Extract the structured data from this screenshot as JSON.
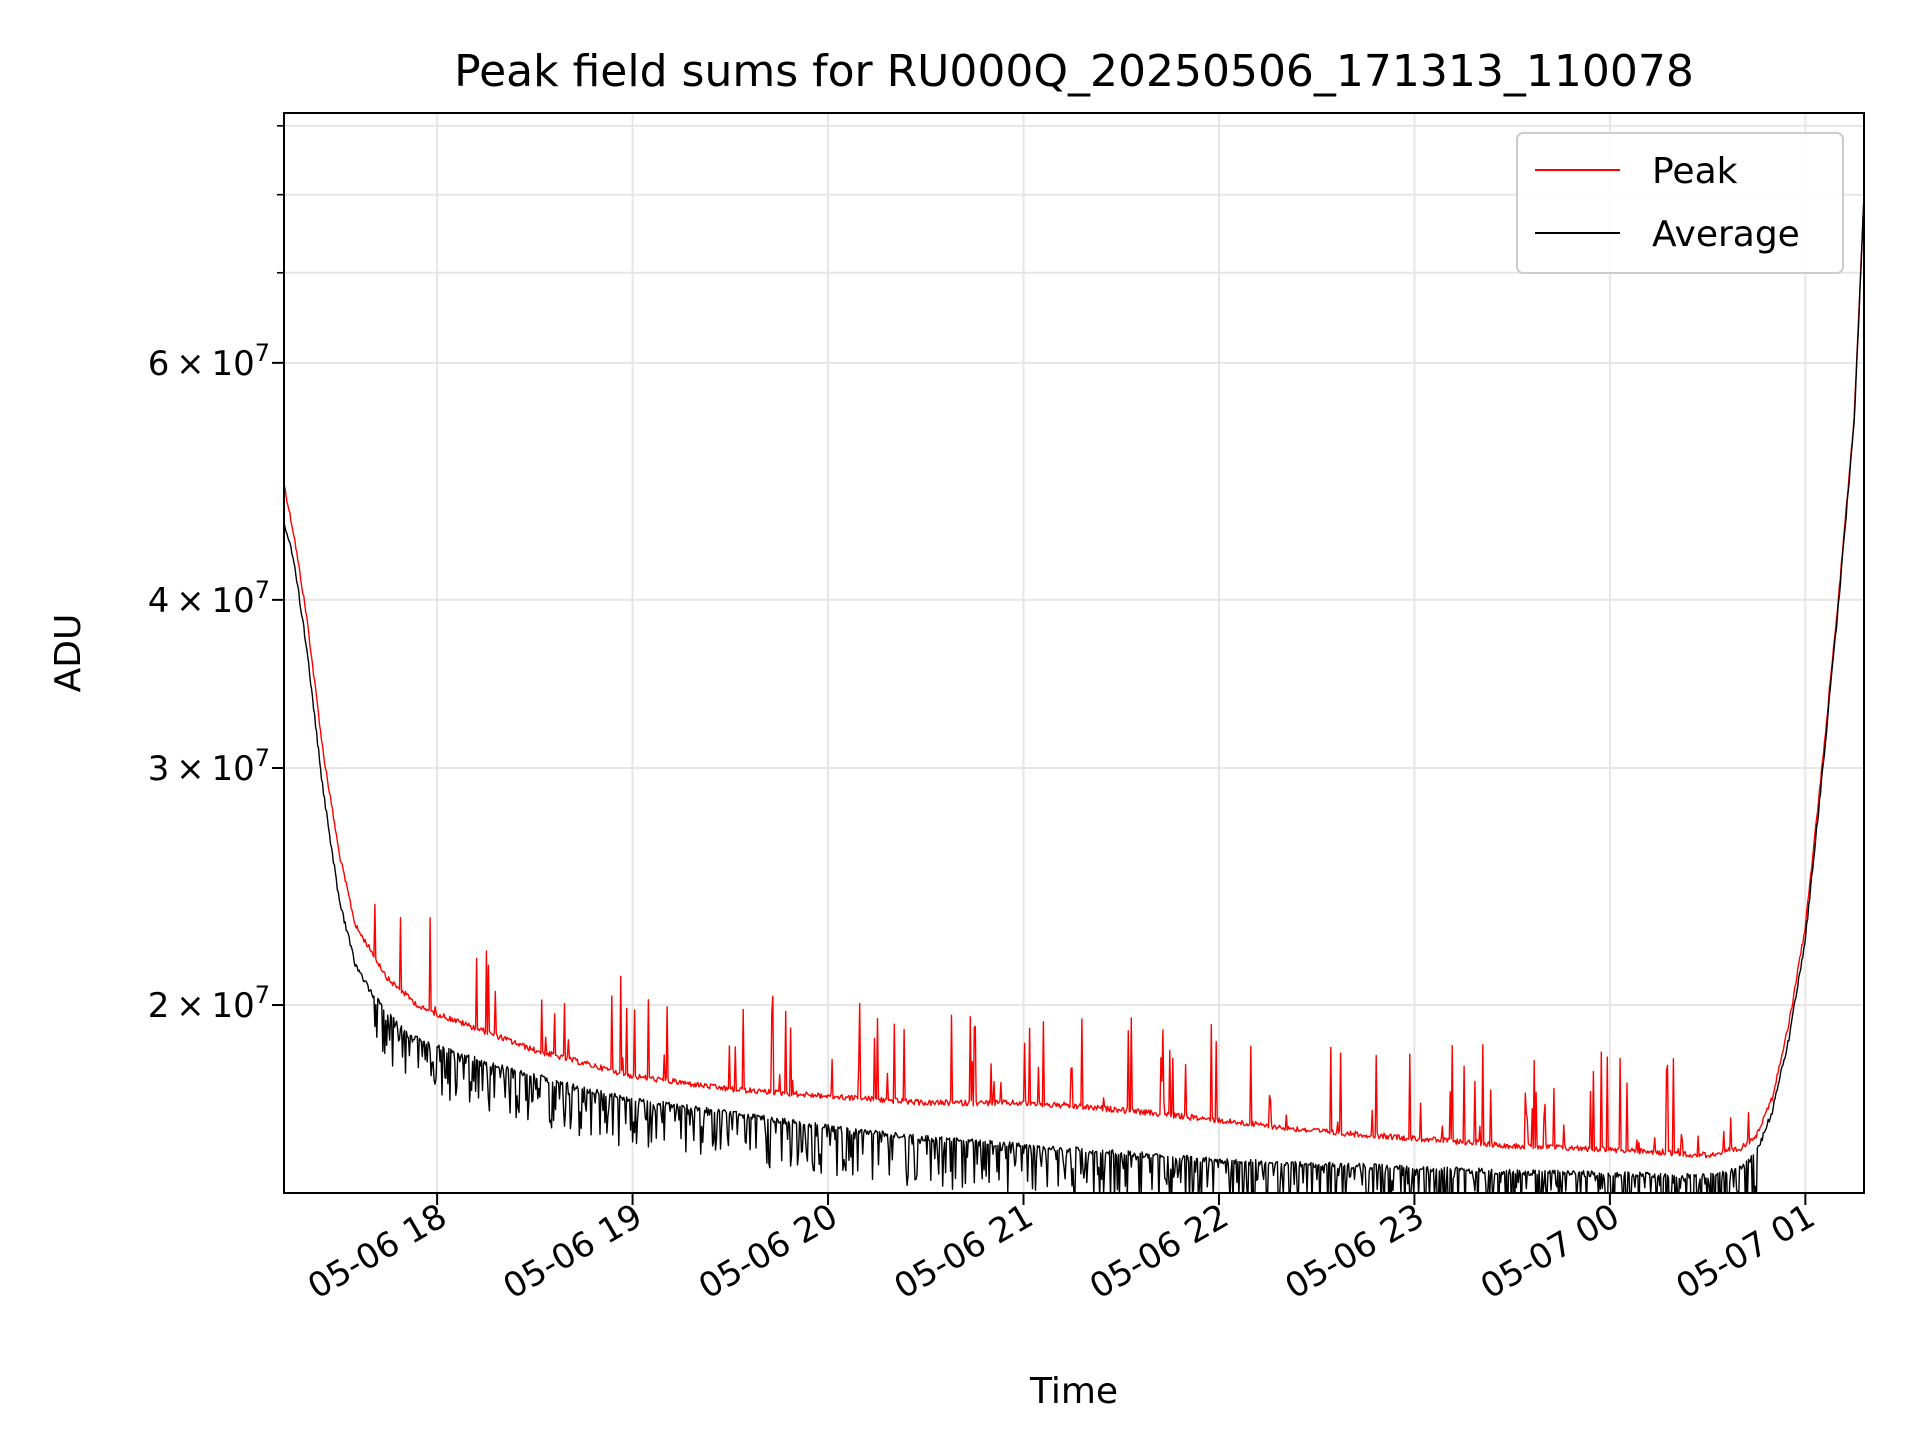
{
  "chart_data": {
    "type": "line",
    "title": "Peak field sums for RU000Q_20250506_171313_110078",
    "xlabel": "Time",
    "ylabel": "ADU",
    "y_scale": "log",
    "ylim": [
      14500000,
      92000000
    ],
    "xlim": [
      "2025-05-06 17:13",
      "2025-05-07 01:18"
    ],
    "grid": true,
    "legend_position": "top-right",
    "x_ticks": [
      {
        "value": "2025-05-06 18:00",
        "label": "05-06 18"
      },
      {
        "value": "2025-05-06 19:00",
        "label": "05-06 19"
      },
      {
        "value": "2025-05-06 20:00",
        "label": "05-06 20"
      },
      {
        "value": "2025-05-06 21:00",
        "label": "05-06 21"
      },
      {
        "value": "2025-05-06 22:00",
        "label": "05-06 22"
      },
      {
        "value": "2025-05-06 23:00",
        "label": "05-06 23"
      },
      {
        "value": "2025-05-07 00:00",
        "label": "05-07 00"
      },
      {
        "value": "2025-05-07 01:00",
        "label": "05-07 01"
      }
    ],
    "y_ticks_major": [
      {
        "value": 20000000,
        "mantissa": "2",
        "exp": "7"
      },
      {
        "value": 30000000,
        "mantissa": "3",
        "exp": "7"
      },
      {
        "value": 40000000,
        "mantissa": "4",
        "exp": "7"
      },
      {
        "value": 60000000,
        "mantissa": "6",
        "exp": "7"
      }
    ],
    "y_ticks_minor": [
      70000000,
      80000000,
      90000000
    ],
    "series": [
      {
        "name": "Peak",
        "color": "#ff0000",
        "x": [
          "2025-05-06 17:13",
          "2025-05-06 17:16",
          "2025-05-06 17:20",
          "2025-05-06 17:25",
          "2025-05-06 17:30",
          "2025-05-06 17:35",
          "2025-05-06 17:40",
          "2025-05-06 17:45",
          "2025-05-06 17:50",
          "2025-05-06 17:55",
          "2025-05-06 18:00",
          "2025-05-06 18:15",
          "2025-05-06 18:30",
          "2025-05-06 18:45",
          "2025-05-06 19:00",
          "2025-05-06 19:30",
          "2025-05-06 20:00",
          "2025-05-06 20:30",
          "2025-05-06 21:00",
          "2025-05-06 21:30",
          "2025-05-06 22:00",
          "2025-05-06 22:30",
          "2025-05-06 23:00",
          "2025-05-06 23:30",
          "2025-05-07 00:00",
          "2025-05-07 00:20",
          "2025-05-07 00:30",
          "2025-05-07 00:40",
          "2025-05-07 00:45",
          "2025-05-07 00:50",
          "2025-05-07 00:55",
          "2025-05-07 01:00",
          "2025-05-07 01:05",
          "2025-05-07 01:10",
          "2025-05-07 01:15",
          "2025-05-07 01:18"
        ],
        "y": [
          49000000,
          45000000,
          39000000,
          31000000,
          26000000,
          23000000,
          22000000,
          21000000,
          20500000,
          20000000,
          19800000,
          19200000,
          18600000,
          18200000,
          17800000,
          17400000,
          17200000,
          17000000,
          17000000,
          16800000,
          16500000,
          16200000,
          16000000,
          15800000,
          15700000,
          15600000,
          15550000,
          15700000,
          16100000,
          17200000,
          19500000,
          23000000,
          30000000,
          40000000,
          55000000,
          80000000
        ]
      },
      {
        "name": "Average",
        "color": "#000000",
        "x": [
          "2025-05-06 17:13",
          "2025-05-06 17:16",
          "2025-05-06 17:20",
          "2025-05-06 17:25",
          "2025-05-06 17:30",
          "2025-05-06 17:35",
          "2025-05-06 17:40",
          "2025-05-06 17:45",
          "2025-05-06 17:50",
          "2025-05-06 17:55",
          "2025-05-06 18:00",
          "2025-05-06 18:15",
          "2025-05-06 18:30",
          "2025-05-06 18:45",
          "2025-05-06 19:00",
          "2025-05-06 19:30",
          "2025-05-06 20:00",
          "2025-05-06 20:30",
          "2025-05-06 21:00",
          "2025-05-06 21:30",
          "2025-05-06 22:00",
          "2025-05-06 22:30",
          "2025-05-06 23:00",
          "2025-05-06 23:30",
          "2025-05-07 00:00",
          "2025-05-07 00:20",
          "2025-05-07 00:30",
          "2025-05-07 00:40",
          "2025-05-07 00:45",
          "2025-05-07 00:50",
          "2025-05-07 00:55",
          "2025-05-07 01:00",
          "2025-05-07 01:05",
          "2025-05-07 01:10",
          "2025-05-07 01:15",
          "2025-05-07 01:18"
        ],
        "y": [
          46000000,
          43000000,
          37000000,
          29000000,
          24000000,
          21500000,
          20500000,
          19800000,
          19200000,
          18900000,
          18700000,
          18200000,
          17800000,
          17400000,
          17100000,
          16700000,
          16300000,
          16000000,
          15800000,
          15600000,
          15400000,
          15300000,
          15200000,
          15100000,
          15050000,
          15000000,
          15000000,
          15200000,
          15600000,
          16800000,
          19000000,
          22500000,
          29500000,
          39500000,
          54500000,
          80000000
        ]
      }
    ]
  }
}
